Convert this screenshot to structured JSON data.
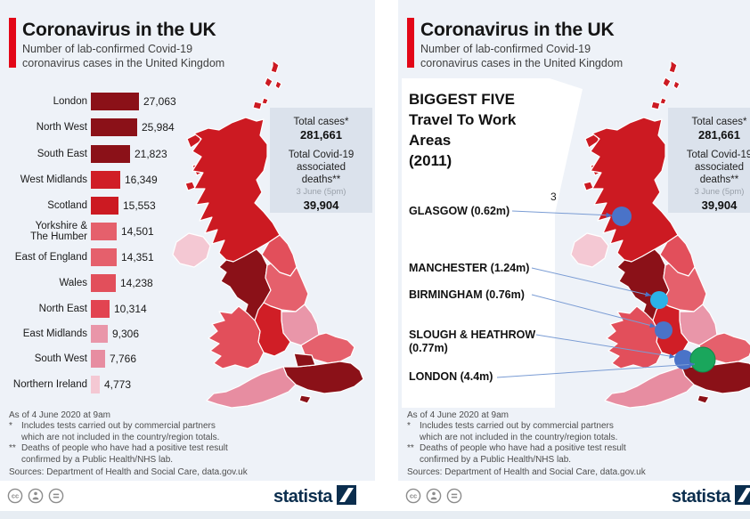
{
  "colors": {
    "accent": "#e30617",
    "panel_bg": "#eef2f8",
    "box_bg": "#dbe2ec",
    "line_blue": "#7a9cd4",
    "arrow_blue": "#4a73c8",
    "brand_navy": "#0b2e4e"
  },
  "shared": {
    "title": "Coronavirus in the UK",
    "subtitle1": "Number of lab-confirmed Covid-19",
    "subtitle2": "coronavirus cases in the United Kingdom",
    "totals": {
      "cases_label": "Total cases*",
      "cases_value": "281,661",
      "deaths_l1": "Total Covid-19",
      "deaths_l2": "associated",
      "deaths_l3": "deaths**",
      "deaths_date": "3 June (5pm)",
      "deaths_value": "39,904"
    },
    "footnotes": [
      {
        "m": "",
        "t": "As of 4 June 2020 at 9am"
      },
      {
        "m": "*",
        "t": "Includes tests carried out by commercial partners"
      },
      {
        "m": "",
        "t": "which are not included in the country/region totals."
      },
      {
        "m": "**",
        "t": "Deaths of people who have had a positive test result"
      },
      {
        "m": "",
        "t": "confirmed by a Public Health/NHS lab."
      }
    ],
    "sources": "Sources: Department of Health and Social Care, data.gov.uk",
    "brand": "statista"
  },
  "bar_chart": {
    "rows": [
      {
        "label": "London",
        "value": "27,063",
        "color": "#8b1118"
      },
      {
        "label": "North West",
        "value": "25,984",
        "color": "#8b1118"
      },
      {
        "label": "South East",
        "value": "21,823",
        "color": "#8b1118"
      },
      {
        "label": "West Midlands",
        "value": "16,349",
        "color": "#d01e26"
      },
      {
        "label": "Scotland",
        "value": "15,553",
        "color": "#cc1a22"
      },
      {
        "label": "Yorkshire &",
        "label2": "The Humber",
        "value": "14,501",
        "color": "#e5606c"
      },
      {
        "label": "East of England",
        "value": "14,351",
        "color": "#e5606c"
      },
      {
        "label": "Wales",
        "value": "14,238",
        "color": "#e24f5b"
      },
      {
        "label": "North East",
        "value": "10,314",
        "color": "#e24451"
      },
      {
        "label": "East Midlands",
        "value": "9,306",
        "color": "#e996a9"
      },
      {
        "label": "South West",
        "value": "7,766",
        "color": "#e78da1"
      },
      {
        "label": "Northern Ireland",
        "value": "4,773",
        "color": "#f4c8d3"
      }
    ]
  },
  "map": {
    "regions": [
      {
        "key": "shetland",
        "name": "Shetland (Scotland)",
        "color": "#cc1a22"
      },
      {
        "key": "orkney",
        "name": "Orkney (Scotland)",
        "color": "#cc1a22"
      },
      {
        "key": "hebrides",
        "name": "Hebrides (Scotland)",
        "color": "#cc1a22"
      },
      {
        "key": "scotland",
        "name": "Scotland",
        "color": "#cc1a22"
      },
      {
        "key": "northern-ireland",
        "name": "Northern Ireland",
        "color": "#f4c8d3"
      },
      {
        "key": "north-east",
        "name": "North East",
        "color": "#e24f5b"
      },
      {
        "key": "north-west",
        "name": "North West",
        "color": "#8b1118"
      },
      {
        "key": "yorkshire",
        "name": "Yorkshire & The Humber",
        "color": "#e5606c"
      },
      {
        "key": "east-midlands",
        "name": "East Midlands",
        "color": "#e996a9"
      },
      {
        "key": "west-midlands",
        "name": "West Midlands",
        "color": "#d01e26"
      },
      {
        "key": "wales",
        "name": "Wales",
        "color": "#e24f5b"
      },
      {
        "key": "east-of-england",
        "name": "East of England",
        "color": "#e5606c"
      },
      {
        "key": "south-east",
        "name": "South East",
        "color": "#8b1118"
      },
      {
        "key": "south-west",
        "name": "South West",
        "color": "#e78da1"
      },
      {
        "key": "london",
        "name": "London",
        "color": "#8b1118"
      },
      {
        "key": "isle-of-wight",
        "name": "Isle of Wight",
        "color": "#8b1118"
      }
    ]
  },
  "travel": {
    "heading_lines": [
      "BIGGEST FIVE",
      "Travel To Work",
      "Areas",
      "(2011)"
    ],
    "artifact": "3",
    "cities": [
      {
        "label": "GLASGOW (0.62m)",
        "color": "#4a73c8"
      },
      {
        "label": "MANCHESTER (1.24m)",
        "color": "#2bb2e8"
      },
      {
        "label": "BIRMINGHAM (0.76m)",
        "color": "#4a73c8"
      },
      {
        "label": "SLOUGH & HEATHROW",
        "label2": "(0.77m)",
        "color": "#4a73c8"
      },
      {
        "label": "LONDON (4.4m)",
        "color": "#1aa65c"
      }
    ]
  },
  "chart_data": [
    {
      "type": "bar",
      "orientation": "horizontal",
      "title": "Coronavirus in the UK",
      "subtitle": "Number of lab-confirmed Covid-19 coronavirus cases in the United Kingdom",
      "categories": [
        "London",
        "North West",
        "South East",
        "West Midlands",
        "Scotland",
        "Yorkshire & The Humber",
        "East of England",
        "Wales",
        "North East",
        "East Midlands",
        "South West",
        "Northern Ireland"
      ],
      "values": [
        27063,
        25984,
        21823,
        16349,
        15553,
        14501,
        14351,
        14238,
        10314,
        9306,
        7766,
        4773
      ],
      "annotations": {
        "total_cases": 281661,
        "total_deaths": 39904,
        "deaths_as_of": "3 June (5pm)",
        "data_as_of": "As of 4 June 2020 at 9am"
      }
    },
    {
      "type": "scatter",
      "title": "BIGGEST FIVE Travel To Work Areas (2011)",
      "points": [
        {
          "label": "GLASGOW",
          "population_m": 0.62
        },
        {
          "label": "MANCHESTER",
          "population_m": 1.24
        },
        {
          "label": "BIRMINGHAM",
          "population_m": 0.76
        },
        {
          "label": "SLOUGH & HEATHROW",
          "population_m": 0.77
        },
        {
          "label": "LONDON",
          "population_m": 4.4
        }
      ]
    }
  ]
}
